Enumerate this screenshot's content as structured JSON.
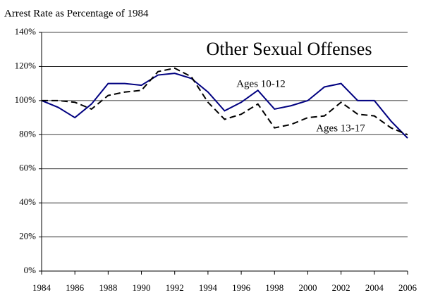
{
  "chart_data": {
    "type": "line",
    "title": "Other Sexual Offenses",
    "y_label": "Arrest Rate as Percentage of 1984",
    "x": [
      1984,
      1985,
      1986,
      1987,
      1988,
      1989,
      1990,
      1991,
      1992,
      1993,
      1994,
      1995,
      1996,
      1997,
      1998,
      1999,
      2000,
      2001,
      2002,
      2003,
      2004,
      2005,
      2006
    ],
    "series": [
      {
        "name": "Ages 10-12",
        "color": "#000080",
        "style": "solid",
        "values": [
          100,
          96,
          90,
          98,
          110,
          110,
          109,
          115,
          116,
          113,
          105,
          94,
          99,
          106,
          95,
          97,
          100,
          108,
          110,
          100,
          100,
          88,
          78
        ]
      },
      {
        "name": "Ages 13-17",
        "color": "#000000",
        "style": "dashed",
        "values": [
          100,
          100,
          99,
          95,
          103,
          105,
          106,
          117,
          119,
          114,
          99,
          89,
          92,
          98,
          84,
          86,
          90,
          91,
          99,
          92,
          91,
          84,
          80
        ]
      }
    ],
    "xlim": [
      1984,
      2006
    ],
    "xticks": [
      1984,
      1986,
      1988,
      1990,
      1992,
      1994,
      1996,
      1998,
      2000,
      2002,
      2004,
      2006
    ],
    "ylim": [
      0,
      140
    ],
    "yticks": [
      {
        "value": 0,
        "label": "0%"
      },
      {
        "value": 20,
        "label": "20%"
      },
      {
        "value": 40,
        "label": "40%"
      },
      {
        "value": 60,
        "label": "60%"
      },
      {
        "value": 80,
        "label": "80%"
      },
      {
        "value": 100,
        "label": "100%"
      },
      {
        "value": 120,
        "label": "120%"
      },
      {
        "value": 140,
        "label": "140%"
      }
    ],
    "grid": true
  }
}
